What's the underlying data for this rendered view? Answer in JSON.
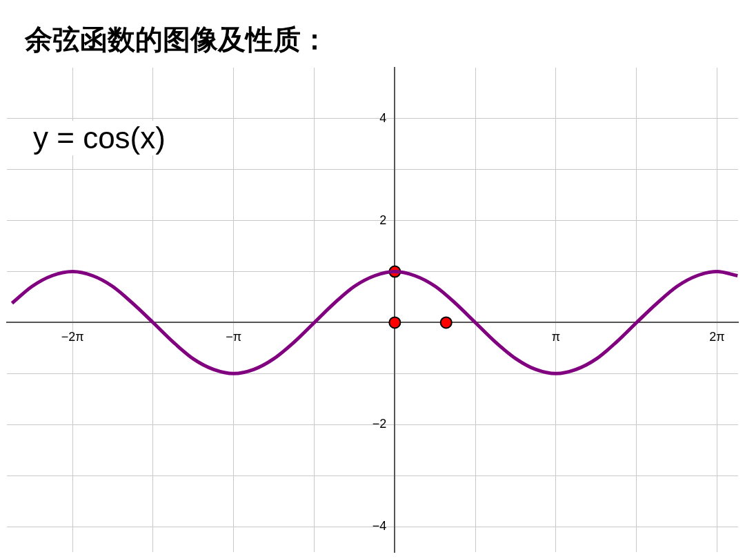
{
  "chart_data": {
    "type": "line",
    "title": "余弦函数的图像及性质：",
    "annotations": [
      "y = cos(x)"
    ],
    "xlim": [
      -7.56,
      6.69
    ],
    "ylim": [
      -4.5,
      5
    ],
    "xticks": [
      {
        "value": -6.28,
        "label": "−2π"
      },
      {
        "value": -4.71,
        "label": null
      },
      {
        "value": -3.14,
        "label": "−π"
      },
      {
        "value": -1.57,
        "label": null
      },
      {
        "value": 0,
        "label": null
      },
      {
        "value": 1.57,
        "label": null
      },
      {
        "value": 3.14,
        "label": "π"
      },
      {
        "value": 4.71,
        "label": null
      },
      {
        "value": 6.28,
        "label": "2π"
      }
    ],
    "yticks": [
      {
        "value": -4,
        "label": "−4"
      },
      {
        "value": -3,
        "label": null
      },
      {
        "value": -2,
        "label": "−2"
      },
      {
        "value": -1,
        "label": null
      },
      {
        "value": 0,
        "label": null
      },
      {
        "value": 1,
        "label": null
      },
      2,
      {
        "value": 3,
        "label": null
      },
      4
    ],
    "grid": true,
    "legend": false,
    "series": [
      {
        "color": "#800080",
        "marker": "none",
        "x": [
          -7.46,
          -7.07,
          -6.68,
          -6.28,
          -5.89,
          -5.5,
          -5.11,
          -4.71,
          -4.32,
          -3.93,
          -3.53,
          -3.14,
          -2.75,
          -2.36,
          -1.96,
          -1.57,
          -1.18,
          -0.79,
          -0.39,
          0,
          0.39,
          0.79,
          1.18,
          1.57,
          1.96,
          2.36,
          2.75,
          3.14,
          3.53,
          3.93,
          4.32,
          4.71,
          5.11,
          5.5,
          5.89,
          6.28,
          6.68
        ],
        "values": [
          0.38,
          0.71,
          0.92,
          1,
          0.92,
          0.71,
          0.38,
          0,
          -0.38,
          -0.71,
          -0.92,
          -1,
          -0.92,
          -0.71,
          -0.38,
          0,
          0.38,
          0.71,
          0.92,
          1,
          0.92,
          0.71,
          0.38,
          0,
          -0.38,
          -0.71,
          -0.92,
          -1,
          -0.92,
          -0.71,
          -0.38,
          0,
          0.38,
          0.71,
          0.92,
          1,
          0.92
        ]
      },
      {
        "type": "scatter",
        "color": "#ff0000",
        "marker": "circle",
        "x": [
          0,
          0,
          1
        ],
        "values": [
          1,
          0,
          0
        ]
      }
    ]
  }
}
